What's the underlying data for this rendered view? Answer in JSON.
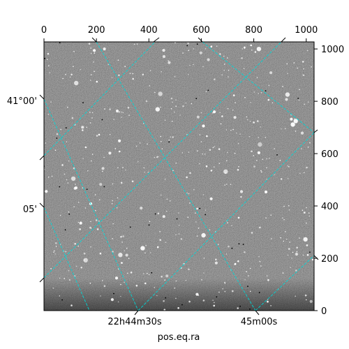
{
  "figure": {
    "xlabel": "pos.eq.ra",
    "top_axis": {
      "ticks": [
        0,
        200,
        400,
        600,
        800,
        1000
      ],
      "labels": [
        "0",
        "200",
        "400",
        "600",
        "800",
        "1000"
      ],
      "range": [
        0,
        1000
      ]
    },
    "right_axis": {
      "ticks": [
        0,
        200,
        400,
        600,
        800,
        1000
      ],
      "labels": [
        "0",
        "200",
        "400",
        "600",
        "800",
        "1000"
      ],
      "range": [
        0,
        1000
      ]
    },
    "bottom_axis": {
      "labels": [
        "22h44m30s",
        "45m00s"
      ]
    },
    "left_axis": {
      "labels": [
        "41°00'",
        "05'"
      ]
    },
    "grid_color": "#00d8d8",
    "image": {
      "background": "#5a5a5a",
      "noise": "grayscale",
      "stars": "white"
    }
  }
}
